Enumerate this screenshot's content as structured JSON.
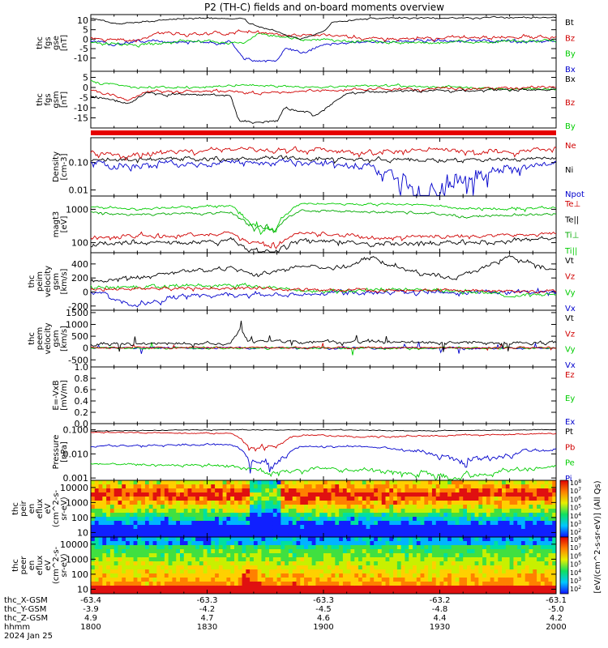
{
  "chart_data": {
    "type": "line",
    "title": "P2 (TH-C) fields and on-board moments overview",
    "panels": [
      {
        "id": "fgs_gse",
        "ylabel": [
          "thc",
          "fgs",
          "gse",
          "[nT]"
        ],
        "yscale": "linear",
        "ylim": [
          -17,
          13
        ],
        "yticks": [
          10,
          5,
          0,
          -5,
          -10
        ],
        "series": [
          {
            "name": "Bt",
            "color": "#000000"
          },
          {
            "name": "Bz",
            "color": "#d00000"
          },
          {
            "name": "By",
            "color": "#00cc00"
          },
          {
            "name": "Bx",
            "color": "#0000cc"
          }
        ]
      },
      {
        "id": "fgs_gsm",
        "ylabel": [
          "thc",
          "fgs",
          "gsm",
          "[nT]"
        ],
        "yscale": "linear",
        "ylim": [
          -20,
          8
        ],
        "yticks": [
          5,
          0,
          -5,
          -10,
          -15
        ],
        "series": [
          {
            "name": "Bx",
            "color": "#000000"
          },
          {
            "name": "Bz",
            "color": "#d00000"
          },
          {
            "name": "By",
            "color": "#00cc00"
          }
        ]
      },
      {
        "id": "density",
        "ylabel": [
          "Density",
          "[cm-3]"
        ],
        "yscale": "log",
        "ylim": [
          0.006,
          0.8
        ],
        "yticks": [
          0.1,
          0.01
        ],
        "yticklabels": [
          "0.10",
          "0.01"
        ],
        "series": [
          {
            "name": "Ne",
            "color": "#d00000"
          },
          {
            "name": "Ni",
            "color": "#000000"
          },
          {
            "name": "Npot",
            "color": "#0000cc"
          }
        ]
      },
      {
        "id": "temperature",
        "ylabel": [
          "magt3",
          "[eV]"
        ],
        "yscale": "log",
        "ylim": [
          50,
          2500
        ],
        "yticks": [
          1000,
          100
        ],
        "series": [
          {
            "name": "Te⊥",
            "color": "#d00000"
          },
          {
            "name": "Te||",
            "color": "#000000"
          },
          {
            "name": "Ti⊥",
            "color": "#00aa00"
          },
          {
            "name": "Ti||",
            "color": "#00cc00"
          }
        ]
      },
      {
        "id": "peim_velocity",
        "ylabel": [
          "thc",
          "peim",
          "velocity",
          "gsm",
          "[km/s]"
        ],
        "yscale": "linear",
        "ylim": [
          -260,
          560
        ],
        "yticks": [
          400,
          200,
          0,
          -200
        ],
        "series": [
          {
            "name": "Vt",
            "color": "#000000"
          },
          {
            "name": "Vz",
            "color": "#d00000"
          },
          {
            "name": "Vy",
            "color": "#00cc00"
          },
          {
            "name": "Vx",
            "color": "#0000cc"
          }
        ]
      },
      {
        "id": "peem_velocity",
        "ylabel": [
          "thc",
          "peem",
          "velocity",
          "gsm",
          "[km/s]"
        ],
        "yscale": "linear",
        "ylim": [
          -800,
          1600
        ],
        "yticks": [
          1500,
          1000,
          500,
          0,
          -500
        ],
        "series": [
          {
            "name": "Vt",
            "color": "#000000"
          },
          {
            "name": "Vz",
            "color": "#d00000"
          },
          {
            "name": "Vy",
            "color": "#00cc00"
          },
          {
            "name": "Vx",
            "color": "#0000cc"
          }
        ]
      },
      {
        "id": "efield",
        "ylabel": [
          "E=-VxB",
          "[mV/m]"
        ],
        "yscale": "linear",
        "ylim": [
          0,
          1
        ],
        "yticks": [
          1.0,
          0.8,
          0.6,
          0.4,
          0.2,
          0.0
        ],
        "yticklabels": [
          "1.0",
          "0.8",
          "0.6",
          "0.4",
          "0.2",
          "0.0"
        ],
        "series": [
          {
            "name": "Ez",
            "color": "#d00000"
          },
          {
            "name": "Ey",
            "color": "#00cc00"
          },
          {
            "name": "Ex",
            "color": "#0000cc"
          }
        ]
      },
      {
        "id": "pressure",
        "ylabel": [
          "Pressure",
          "[nPa]"
        ],
        "yscale": "log",
        "ylim": [
          0.0008,
          0.18
        ],
        "yticks": [
          0.1,
          0.01,
          0.001
        ],
        "yticklabels": [
          "0.100",
          "0.010",
          "0.001"
        ],
        "series": [
          {
            "name": "Pt",
            "color": "#000000"
          },
          {
            "name": "Pb",
            "color": "#d00000"
          },
          {
            "name": "Pe",
            "color": "#00cc00"
          },
          {
            "name": "Pi",
            "color": "#0000cc"
          }
        ]
      },
      {
        "id": "peir_spec",
        "type": "heatmap",
        "ylabel": [
          "thc",
          "peir",
          "en",
          "eflux",
          "eV",
          "(cm^2-s-",
          "sr-eV)"
        ],
        "yscale": "log",
        "ylim": [
          5,
          30000
        ],
        "yticks": [
          10000,
          1000,
          100,
          10
        ],
        "colorscale": "rainbow"
      },
      {
        "id": "peer_spec",
        "type": "heatmap",
        "ylabel": [
          "thc",
          "peer",
          "en",
          "eflux",
          "eV",
          "(cm^2-s-",
          "sr-eV)"
        ],
        "yscale": "log",
        "ylim": [
          5,
          30000
        ],
        "yticks": [
          10000,
          1000,
          100,
          10
        ],
        "colorscale": "rainbow"
      }
    ],
    "colorbar": {
      "label": "[eV/(cm^2-s-sr-eV)] (All Qs)",
      "upper_ticks": [
        "10^8",
        "10^7",
        "10^6",
        "10^5",
        "10^4",
        "10^3",
        "10^2"
      ],
      "lower_ticks": [
        "10^8",
        "10^7",
        "10^6",
        "10^5",
        "10^4",
        "10^3",
        "10^2"
      ]
    },
    "xaxis": {
      "range": [
        1800,
        2000
      ],
      "rows": [
        {
          "label": "thc_X-GSM",
          "values": [
            "-63.4",
            "-63.3",
            "-63.3",
            "-63.2",
            "-63.1"
          ]
        },
        {
          "label": "thc_Y-GSM",
          "values": [
            "-3.9",
            "-4.2",
            "-4.5",
            "-4.8",
            "-5.0"
          ]
        },
        {
          "label": "thc_Z-GSM",
          "values": [
            "4.9",
            "4.7",
            "4.6",
            "4.4",
            "4.2"
          ]
        },
        {
          "label": "hhmm",
          "values": [
            "1800",
            "1830",
            "1900",
            "1930",
            "2000"
          ]
        }
      ],
      "date": "2024 Jan 25"
    }
  }
}
